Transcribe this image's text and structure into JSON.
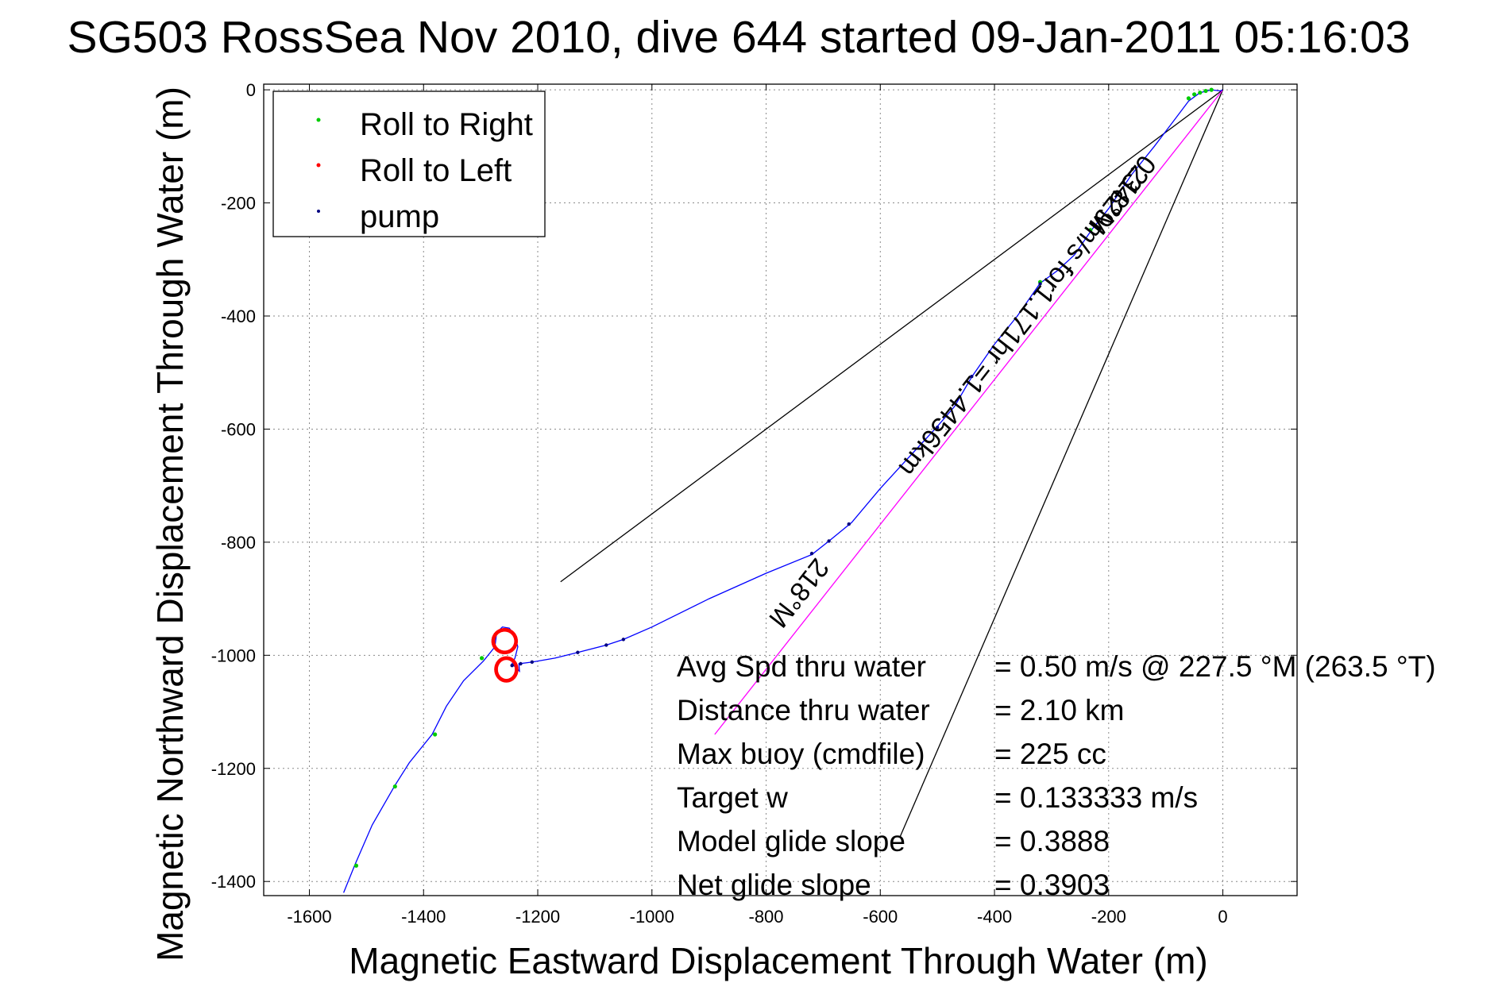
{
  "chart_data": {
    "type": "line",
    "title": "SG503 RossSea Nov 2010, dive 644 started 09-Jan-2011 05:16:03",
    "xlabel": "Magnetic Eastward Displacement Through Water (m)",
    "ylabel": "Magnetic Northward Displacement Through Water (m)",
    "xlim": [
      -1680,
      130
    ],
    "ylim": [
      -1425,
      10
    ],
    "xticks": [
      -1600,
      -1400,
      -1200,
      -1000,
      -800,
      -600,
      -400,
      -200,
      0
    ],
    "yticks": [
      0,
      -200,
      -400,
      -600,
      -800,
      -1000,
      -1200,
      -1400
    ],
    "grid": true,
    "legend": {
      "placement": "top-left",
      "entries": [
        "Roll to Right",
        "Roll to Left",
        "pump"
      ]
    },
    "colors": {
      "track": "#0000ff",
      "roll_right": "#00cc00",
      "roll_left": "#ff0000",
      "pump": "#000080",
      "heading_line": "#ff00ff",
      "guide": "#000000"
    },
    "track": {
      "name": "",
      "points": [
        [
          -1540,
          -1420
        ],
        [
          -1520,
          -1370
        ],
        [
          -1490,
          -1300
        ],
        [
          -1450,
          -1230
        ],
        [
          -1425,
          -1190
        ],
        [
          -1385,
          -1140
        ],
        [
          -1360,
          -1090
        ],
        [
          -1330,
          -1045
        ],
        [
          -1295,
          -1010
        ],
        [
          -1275,
          -985
        ],
        [
          -1272,
          -960
        ],
        [
          -1262,
          -950
        ],
        [
          -1250,
          -952
        ],
        [
          -1240,
          -965
        ],
        [
          -1235,
          -985
        ],
        [
          -1240,
          -1005
        ],
        [
          -1245,
          -1015
        ],
        [
          -1238,
          -1022
        ],
        [
          -1232,
          -1028
        ],
        [
          -1233,
          -1015
        ],
        [
          -1210,
          -1012
        ],
        [
          -1170,
          -1005
        ],
        [
          -1130,
          -995
        ],
        [
          -1080,
          -982
        ],
        [
          -1050,
          -972
        ],
        [
          -1000,
          -950
        ],
        [
          -900,
          -900
        ],
        [
          -800,
          -855
        ],
        [
          -720,
          -822
        ],
        [
          -690,
          -798
        ],
        [
          -650,
          -765
        ],
        [
          -600,
          -705
        ],
        [
          -550,
          -650
        ],
        [
          -500,
          -595
        ],
        [
          -470,
          -560
        ],
        [
          -440,
          -508
        ],
        [
          -400,
          -450
        ],
        [
          -360,
          -400
        ],
        [
          -320,
          -342
        ],
        [
          -290,
          -320
        ],
        [
          -260,
          -292
        ],
        [
          -230,
          -248
        ],
        [
          -200,
          -210
        ],
        [
          -160,
          -150
        ],
        [
          -120,
          -100
        ],
        [
          -90,
          -60
        ],
        [
          -60,
          -20
        ],
        [
          -40,
          -5
        ],
        [
          -20,
          0
        ],
        [
          -5,
          -2
        ],
        [
          0,
          0
        ]
      ]
    },
    "roll_left_loops": [
      {
        "center": [
          -1258,
          -975
        ],
        "radius": [
          20,
          20
        ]
      },
      {
        "center": [
          -1255,
          -1025
        ],
        "radius": [
          18,
          20
        ]
      }
    ],
    "roll_right_points": [
      [
        -1518,
        -1372
      ],
      [
        -1450,
        -1232
      ],
      [
        -1380,
        -1140
      ],
      [
        -1298,
        -1005
      ],
      [
        -320,
        -340
      ],
      [
        -232,
        -248
      ],
      [
        -60,
        -15
      ],
      [
        -50,
        -8
      ],
      [
        -40,
        -5
      ],
      [
        -30,
        -2
      ],
      [
        -20,
        0
      ]
    ],
    "pump_points": [
      [
        -1245,
        -1018
      ],
      [
        -1230,
        -1015
      ],
      [
        -1210,
        -1012
      ],
      [
        -1130,
        -995
      ],
      [
        -1080,
        -982
      ],
      [
        -1050,
        -972
      ],
      [
        -720,
        -820
      ],
      [
        -690,
        -798
      ],
      [
        -655,
        -768
      ],
      [
        -500,
        -597
      ],
      [
        -440,
        -507
      ],
      [
        -320,
        -343
      ]
    ],
    "heading_line": [
      [
        -890,
        -1140
      ],
      [
        0,
        0
      ]
    ],
    "guide_lines": [
      [
        [
          -1160,
          -870
        ],
        [
          0,
          0
        ]
      ],
      [
        [
          -565,
          -1320
        ],
        [
          0,
          0
        ]
      ]
    ],
    "rotated_labels": [
      {
        "text": "218°M",
        "anchor": [
          -755,
          -880
        ],
        "angle": -52
      },
      {
        "text": "0.3429m/s for1.171hr =1.4456km",
        "anchor": [
          -355,
          -390
        ],
        "angle": -52
      },
      {
        "text": "218°M",
        "anchor": [
          -195,
          -185
        ],
        "angle": -52
      }
    ],
    "stats": [
      {
        "label": "Avg Spd thru water",
        "value": "=  0.50 m/s @ 227.5 °M (263.5 °T)"
      },
      {
        "label": "Distance thru water",
        "value": "=  2.10 km"
      },
      {
        "label": "Max buoy (cmdfile)",
        "value": "= 225 cc"
      },
      {
        "label": "Target w",
        "value": "= 0.133333 m/s"
      },
      {
        "label": "Model glide slope",
        "value": "= 0.3888"
      },
      {
        "label": "Net glide slope",
        "value": "= 0.3903"
      }
    ]
  }
}
